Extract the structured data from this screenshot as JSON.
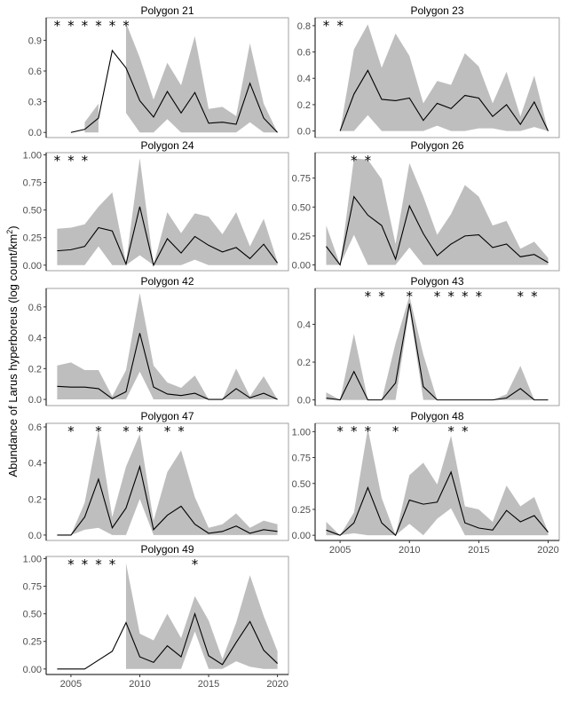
{
  "chart_data": {
    "type": "line",
    "ylabel": "Abundance of Larus hyperboreus (log count/km",
    "ylabel_sup": "2",
    "ylabel_end": ")",
    "x": [
      2004,
      2005,
      2006,
      2007,
      2008,
      2009,
      2010,
      2011,
      2012,
      2013,
      2014,
      2015,
      2016,
      2017,
      2018,
      2019,
      2020
    ],
    "xlim": [
      2003.2,
      2020.8
    ],
    "xticks": [
      2005,
      2010,
      2015,
      2020
    ],
    "colors": {
      "ribbon": "#bebebe",
      "line": "#000000",
      "frame": "#a0a0a0",
      "star": "#000000"
    },
    "grid": false,
    "panels": [
      {
        "title": "Polygon 21",
        "ylim": [
          -0.05,
          1.12
        ],
        "yticks": [
          0.0,
          0.3,
          0.6,
          0.9
        ],
        "tick_decimals": 1,
        "mean": [
          null,
          0,
          0.03,
          0.14,
          0.8,
          0.63,
          0.31,
          0.15,
          0.4,
          0.19,
          0.39,
          0.09,
          0.1,
          0.08,
          0.48,
          0.14,
          0.0
        ],
        "lower": [
          null,
          null,
          0,
          0,
          null,
          0.19,
          0,
          0,
          0.13,
          0,
          0,
          0,
          0,
          0,
          0.1,
          0,
          0
        ],
        "upper": [
          null,
          null,
          0.1,
          0.28,
          null,
          1.07,
          0.73,
          0.32,
          0.68,
          0.46,
          0.94,
          0.23,
          0.25,
          0.16,
          0.87,
          0.28,
          0
        ],
        "stars": [
          2004,
          2005,
          2006,
          2007,
          2008,
          2009
        ]
      },
      {
        "title": "Polygon 23",
        "ylim": [
          -0.05,
          0.86
        ],
        "yticks": [
          0.0,
          0.2,
          0.4,
          0.6,
          0.8
        ],
        "tick_decimals": 1,
        "mean": [
          null,
          0,
          0.28,
          0.46,
          0.24,
          0.23,
          0.25,
          0.08,
          0.21,
          0.17,
          0.27,
          0.25,
          0.11,
          0.2,
          0.05,
          0.22,
          0.0
        ],
        "lower": [
          null,
          0,
          0,
          0.12,
          0,
          0,
          0,
          0,
          0.04,
          0,
          0,
          0.02,
          0.02,
          0,
          0,
          0.03,
          0
        ],
        "upper": [
          null,
          0,
          0.62,
          0.81,
          0.48,
          0.74,
          0.57,
          0.21,
          0.38,
          0.35,
          0.59,
          0.49,
          0.21,
          0.45,
          0.11,
          0.42,
          0
        ],
        "stars": [
          2004,
          2005
        ]
      },
      {
        "title": "Polygon 24",
        "ylim": [
          -0.05,
          1.02
        ],
        "yticks": [
          0.0,
          0.25,
          0.5,
          0.75,
          1.0
        ],
        "tick_decimals": 2,
        "mean": [
          0.13,
          0.14,
          0.17,
          0.34,
          0.31,
          0.01,
          0.53,
          0.0,
          0.24,
          0.11,
          0.26,
          0.18,
          0.12,
          0.16,
          0.06,
          0.19,
          0.02
        ],
        "lower": [
          0,
          0,
          0,
          0.17,
          0,
          0,
          0.09,
          0,
          0,
          0,
          0.05,
          0,
          0,
          0,
          0,
          0,
          0
        ],
        "upper": [
          0.33,
          0.34,
          0.37,
          0.53,
          0.66,
          0.02,
          0.97,
          0,
          0.48,
          0.29,
          0.47,
          0.44,
          0.28,
          0.48,
          0.17,
          0.42,
          0.03
        ],
        "stars": [
          2004,
          2005,
          2006
        ]
      },
      {
        "title": "Polygon 26",
        "ylim": [
          -0.05,
          0.97
        ],
        "yticks": [
          0.0,
          0.25,
          0.5,
          0.75
        ],
        "tick_decimals": 2,
        "mean": [
          0.16,
          0.0,
          0.59,
          0.43,
          0.34,
          0.05,
          0.51,
          0.27,
          0.08,
          0.18,
          0.25,
          0.26,
          0.15,
          0.18,
          0.07,
          0.09,
          0.02
        ],
        "lower": [
          0,
          0,
          0.26,
          0,
          0,
          0,
          0.15,
          0,
          0,
          0,
          0,
          0,
          0,
          0,
          0,
          0,
          0
        ],
        "upper": [
          0.34,
          0,
          0.92,
          0.91,
          0.74,
          0.18,
          0.88,
          0.59,
          0.26,
          0.44,
          0.69,
          0.59,
          0.34,
          0.38,
          0.14,
          0.2,
          0.06
        ],
        "stars": [
          2006,
          2007
        ]
      },
      {
        "title": "Polygon 42",
        "ylim": [
          -0.04,
          0.72
        ],
        "yticks": [
          0.0,
          0.2,
          0.4,
          0.6
        ],
        "tick_decimals": 1,
        "mean": [
          0.085,
          0.08,
          0.08,
          0.07,
          0.005,
          0.05,
          0.43,
          0.08,
          0.035,
          0.025,
          0.04,
          0,
          0,
          0.07,
          0.01,
          0.04,
          0
        ],
        "lower": [
          0,
          0,
          0,
          0,
          0,
          0,
          0.18,
          0,
          0,
          0,
          0,
          0,
          0,
          0,
          0,
          0,
          0
        ],
        "upper": [
          0.22,
          0.24,
          0.19,
          0.19,
          0.02,
          0.19,
          0.69,
          0.22,
          0.11,
          0.075,
          0.155,
          0,
          0,
          0.2,
          0.02,
          0.15,
          0
        ],
        "stars": []
      },
      {
        "title": "Polygon 43",
        "ylim": [
          -0.03,
          0.59
        ],
        "yticks": [
          0.0,
          0.2,
          0.4
        ],
        "tick_decimals": 1,
        "mean": [
          0.01,
          0,
          0.15,
          0,
          0,
          0.09,
          0.51,
          0.07,
          0,
          0,
          0,
          0,
          0,
          0.01,
          0.06,
          0,
          0
        ],
        "lower": [
          0,
          0,
          0,
          0,
          0,
          0,
          0.48,
          0,
          0,
          0,
          0,
          0,
          0,
          0,
          0,
          0,
          0
        ],
        "upper": [
          0.04,
          0,
          0.35,
          0,
          0,
          0.3,
          0.55,
          0.24,
          0,
          0,
          0,
          0,
          0,
          0.03,
          0.18,
          0,
          0
        ],
        "stars": [
          2007,
          2008,
          2010,
          2012,
          2013,
          2014,
          2015,
          2018,
          2019
        ]
      },
      {
        "title": "Polygon 47",
        "ylim": [
          -0.03,
          0.62
        ],
        "yticks": [
          0.0,
          0.2,
          0.4,
          0.6
        ],
        "tick_decimals": 1,
        "mean": [
          0,
          0,
          0.1,
          0.31,
          0.04,
          0.15,
          0.38,
          0.03,
          0.11,
          0.16,
          0.06,
          0.01,
          0.02,
          0.05,
          0.01,
          0.03,
          0.02
        ],
        "lower": [
          null,
          0,
          0.03,
          0.04,
          0,
          0,
          0.2,
          0,
          0,
          0,
          0,
          0,
          0,
          0,
          0,
          0,
          0
        ],
        "upper": [
          null,
          0,
          0.18,
          0.58,
          0.1,
          0.38,
          0.56,
          0.08,
          0.35,
          0.47,
          0.21,
          0.04,
          0.06,
          0.12,
          0.04,
          0.08,
          0.06
        ],
        "stars": [
          2005,
          2007,
          2009,
          2010,
          2012,
          2013
        ]
      },
      {
        "title": "Polygon 48",
        "ylim": [
          -0.05,
          1.08
        ],
        "yticks": [
          0.0,
          0.25,
          0.5,
          0.75,
          1.0
        ],
        "tick_decimals": 2,
        "show_xaxis": true,
        "mean": [
          0.05,
          0,
          0.12,
          0.46,
          0.12,
          0,
          0.34,
          0.3,
          0.32,
          0.61,
          0.12,
          0.07,
          0.05,
          0.24,
          0.13,
          0.19,
          0.03
        ],
        "lower": [
          0,
          0,
          0.02,
          0,
          0,
          0,
          0.11,
          0,
          0.16,
          0.26,
          0,
          0,
          0,
          0,
          0,
          0,
          0
        ],
        "upper": [
          0.13,
          0,
          0.22,
          1.03,
          0.36,
          0,
          0.58,
          0.7,
          0.49,
          0.96,
          0.28,
          0.25,
          0.13,
          0.48,
          0.28,
          0.37,
          0.03
        ],
        "stars": [
          2005,
          2006,
          2007,
          2009,
          2013,
          2014
        ]
      },
      {
        "title": "Polygon 49",
        "ylim": [
          -0.05,
          1.02
        ],
        "yticks": [
          0.0,
          0.25,
          0.5,
          0.75,
          1.0
        ],
        "tick_decimals": 2,
        "show_xaxis": true,
        "mean": [
          0,
          0,
          0,
          0.08,
          0.16,
          0.42,
          0.11,
          0.06,
          0.21,
          0.11,
          0.5,
          0.12,
          0.04,
          0.24,
          0.43,
          0.17,
          0.05
        ],
        "lower": [
          null,
          null,
          null,
          null,
          null,
          0,
          0,
          0,
          0,
          0,
          0.34,
          0,
          0,
          0.07,
          0.02,
          0,
          0
        ],
        "upper": [
          null,
          null,
          null,
          null,
          null,
          0.96,
          0.32,
          0.26,
          0.5,
          0.28,
          0.66,
          0.44,
          0.09,
          0.42,
          0.85,
          0.48,
          0.16
        ],
        "stars": [
          2005,
          2006,
          2007,
          2008,
          2014
        ]
      }
    ]
  }
}
